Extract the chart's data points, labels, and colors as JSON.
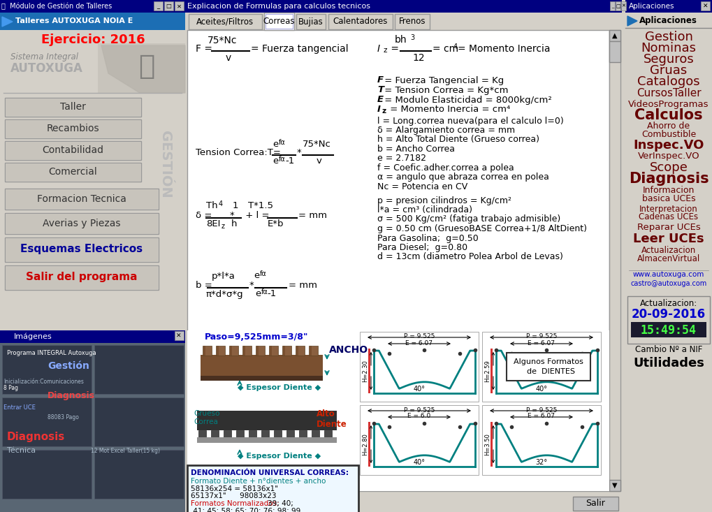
{
  "title_bar_left": "Módulo de Gestión de Talleres",
  "title_bar_right": "Explicacion de Formulas para calculos tecnicos",
  "app_panel_title": "Aplicaciones",
  "left_header": "Talleres AUTOXUGA NOIA E",
  "ejercicio": "Ejercicio: 2016",
  "sistema_integral": "Sistema Integral",
  "autoxuga": "AUTOXUGA",
  "buttons": [
    "Taller",
    "Recambios",
    "Contabilidad",
    "Comercial",
    "Formacion Tecnica",
    "Averias y Piezas",
    "Esquemas Electricos",
    "Salir del programa"
  ],
  "btn_text_colors": [
    "#333333",
    "#333333",
    "#333333",
    "#333333",
    "#333333",
    "#333333",
    "#000099",
    "#cc0000"
  ],
  "btn_bold": [
    false,
    false,
    false,
    false,
    false,
    false,
    true,
    true
  ],
  "gestion_text": "GESTIÓN",
  "tabs": [
    "Aceites/Filtros",
    "Correas",
    "Bujias",
    "Calentadores",
    "Frenos"
  ],
  "active_tab": "Correas",
  "right_links": [
    {
      "text": "Gestion",
      "size": 13,
      "bold": false
    },
    {
      "text": "Nominas",
      "size": 13,
      "bold": false
    },
    {
      "text": "Seguros",
      "size": 13,
      "bold": false
    },
    {
      "text": "Gruas",
      "size": 13,
      "bold": false
    },
    {
      "text": "Catalogos",
      "size": 13,
      "bold": false
    },
    {
      "text": "CursosTaller",
      "size": 11,
      "bold": false
    },
    {
      "text": "VideosProgramas",
      "size": 9.5,
      "bold": false
    },
    {
      "text": "Calculos",
      "size": 15,
      "bold": true
    },
    {
      "text": "Ahorro de\nCombustible",
      "size": 9,
      "bold": false
    },
    {
      "text": "Inspec.VO",
      "size": 13,
      "bold": true
    },
    {
      "text": "VerInspec.VO",
      "size": 9.5,
      "bold": false
    },
    {
      "text": "Scope",
      "size": 13,
      "bold": false
    },
    {
      "text": "Diagnosis",
      "size": 15,
      "bold": true
    },
    {
      "text": "Informacion\nbasica UCEs",
      "size": 9,
      "bold": false
    },
    {
      "text": "Interpretacion\nCadenas UCEs",
      "size": 8.5,
      "bold": false
    },
    {
      "text": "Reparar UCEs",
      "size": 9.5,
      "bold": false
    },
    {
      "text": "Leer UCEs",
      "size": 13,
      "bold": true
    },
    {
      "text": "Actualizacion\nAlmacenVirtual",
      "size": 8.5,
      "bold": false
    }
  ],
  "website1": "www.autoxuga.com",
  "website2": "castro@autoxuga.com",
  "actualizacion": "Actualizacion:",
  "fecha": "20-09-2016",
  "hora": "15:49:54",
  "cambio_nif": "Cambio Nº a NIF",
  "utilidades": "Utilidades",
  "bg_color": "#d4d0c8",
  "paso_text": "Paso=9,525mm=3/8\"",
  "ancho_text": "ANCHO",
  "espesor_text1": "Espesor Diente",
  "espesor_text2": "Espesor Diente",
  "grueso_text": "Grueso\nCorrea",
  "alto_text": "Alto\nDiente",
  "denom_title": "DENOMINACIÓN UNIVERSAL CORREAS:",
  "denom_line1": "Formato Diente + n°dientes + ancho",
  "denom_line2": "58136x254 = 58136x1\"",
  "denom_line3": "65137x1\"      98083x23",
  "denom_line4a": "Formatos Normalizados: ",
  "denom_line4b": "39; 40;",
  "denom_line5": " 41; 45; 58; 65; 70; 76; 98; 99",
  "algunos_formatos1": "Algunos Formatos",
  "algunos_formatos2": "  de  DIENTES",
  "salir_btn": "Salir",
  "imagenes_title": "Imágenes"
}
